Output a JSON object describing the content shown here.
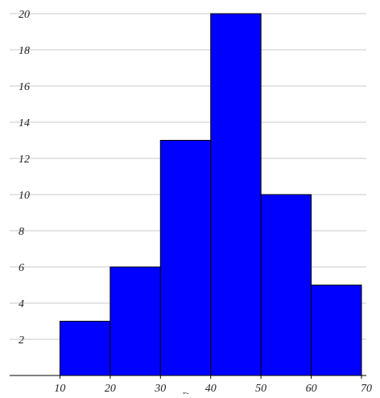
{
  "chart_data": {
    "type": "bar",
    "subtype": "histogram",
    "bins": [
      {
        "x0": 10,
        "x1": 20,
        "count": 3
      },
      {
        "x0": 20,
        "x1": 30,
        "count": 6
      },
      {
        "x0": 30,
        "x1": 40,
        "count": 13
      },
      {
        "x0": 40,
        "x1": 50,
        "count": 20
      },
      {
        "x0": 50,
        "x1": 60,
        "count": 10
      },
      {
        "x0": 60,
        "x1": 70,
        "count": 5
      }
    ],
    "xlim": [
      0,
      70
    ],
    "ylim": [
      0,
      20
    ],
    "xticks": [
      "10",
      "20",
      "30",
      "40",
      "50",
      "60",
      "70"
    ],
    "yticks": [
      "2",
      "4",
      "6",
      "8",
      "10",
      "12",
      "14",
      "16",
      "18",
      "20"
    ],
    "xlabel": "D",
    "ylabel": "",
    "title": "",
    "grid": "horizontal",
    "legend": "none",
    "colors": {
      "bar_fill": "#0000ff",
      "bar_stroke": "#000000",
      "grid": "#c8c8c8",
      "axis": "#000000"
    }
  }
}
